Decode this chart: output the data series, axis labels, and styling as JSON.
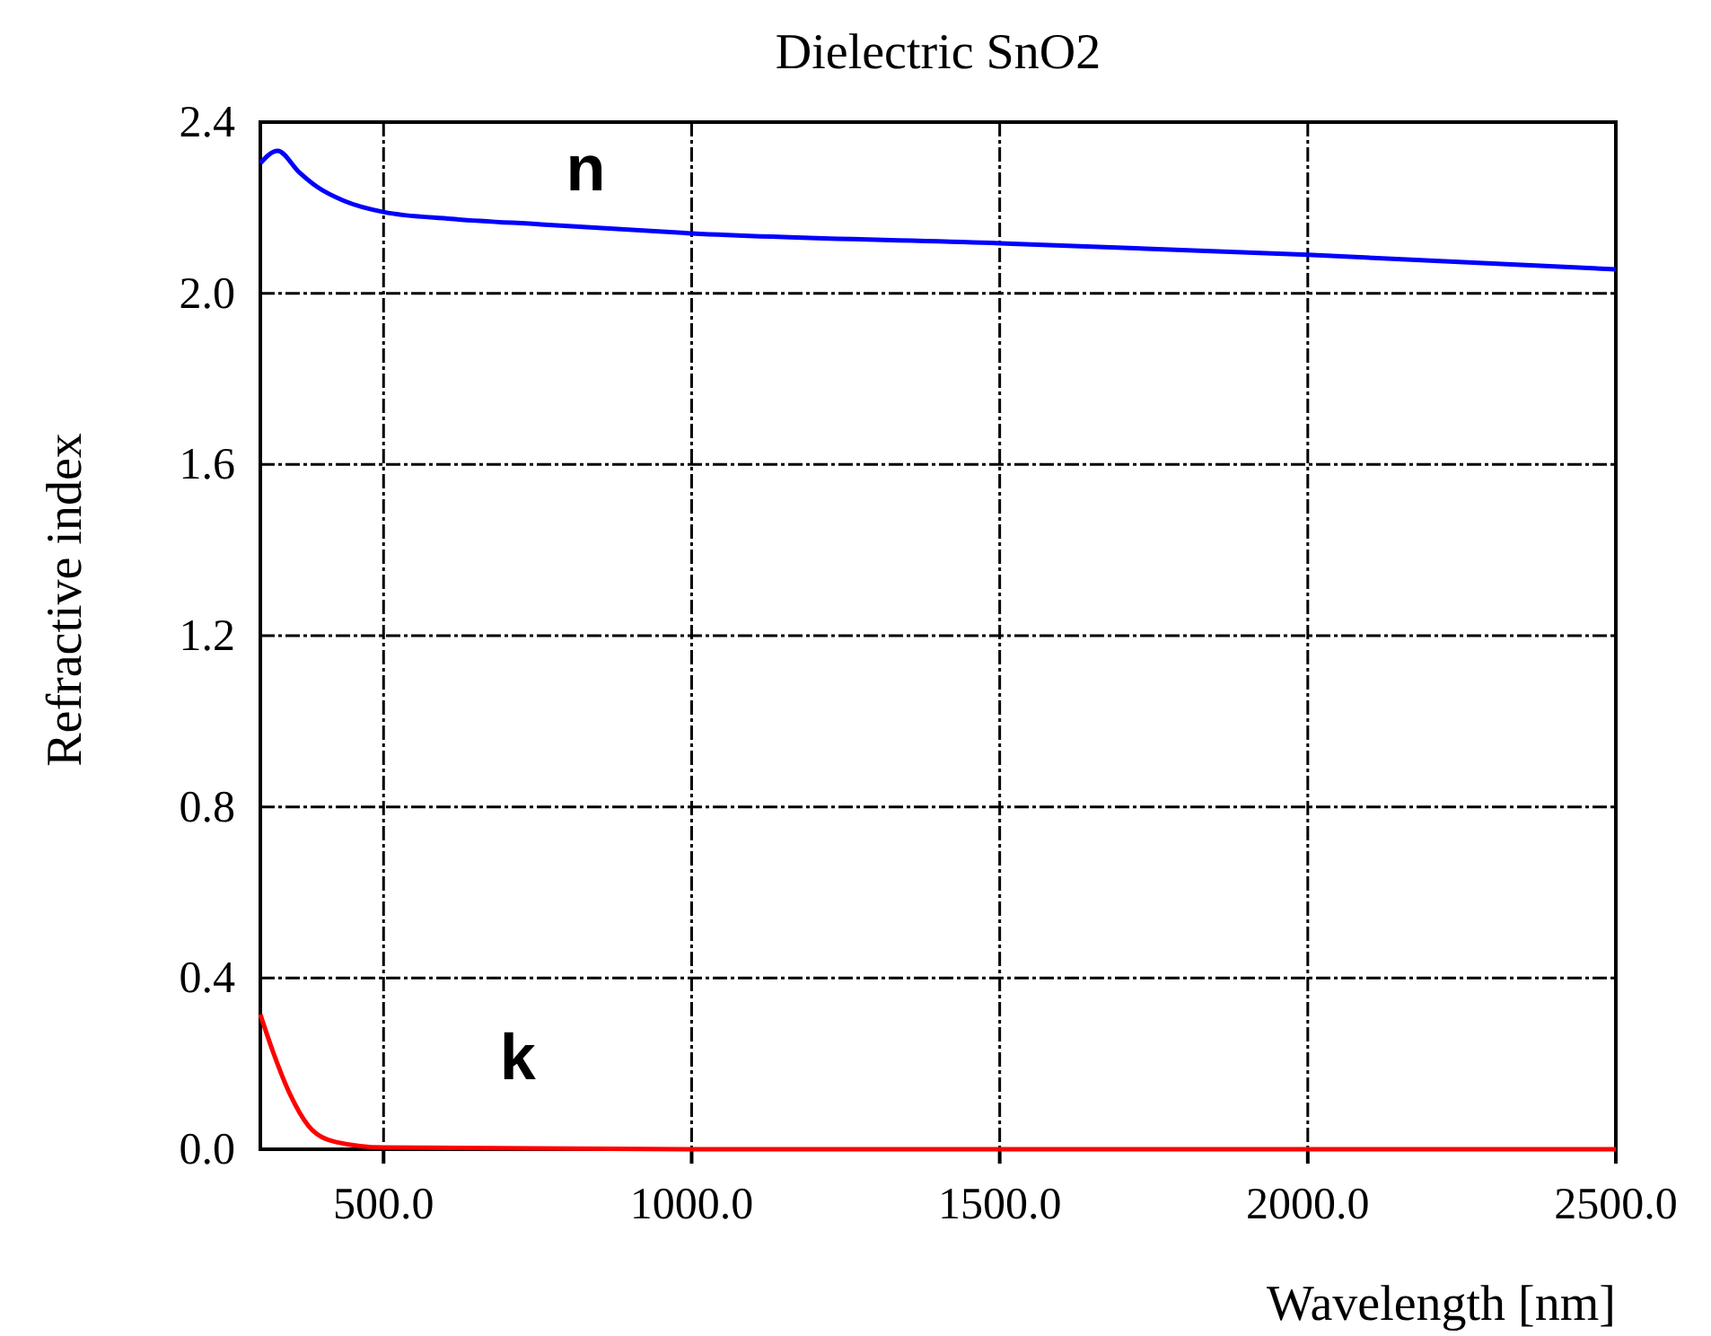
{
  "chart_data": {
    "type": "line",
    "title": "Dielectric SnO2",
    "xlabel": "Wavelength [nm]",
    "ylabel": "Refractive index",
    "xlim": [
      300,
      2500
    ],
    "ylim": [
      0,
      2.4
    ],
    "xticks": [
      {
        "value": 500,
        "label": "500.0"
      },
      {
        "value": 1000,
        "label": "1000.0"
      },
      {
        "value": 1500,
        "label": "1500.0"
      },
      {
        "value": 2000,
        "label": "2000.0"
      },
      {
        "value": 2500,
        "label": "2500.0"
      }
    ],
    "yticks": [
      {
        "value": 0,
        "label": "0.0"
      },
      {
        "value": 0.4,
        "label": "0.4"
      },
      {
        "value": 0.8,
        "label": "0.8"
      },
      {
        "value": 1.2,
        "label": "1.2"
      },
      {
        "value": 1.6,
        "label": "1.6"
      },
      {
        "value": 2.0,
        "label": "2.0"
      },
      {
        "value": 2.4,
        "label": "2.4"
      }
    ],
    "grid": true,
    "line_style": "solid",
    "marker": "none",
    "series": [
      {
        "name": "n",
        "color": "#0000ff",
        "x": [
          300,
          328,
          363,
          392,
          436,
          500,
          610,
          756,
          1000,
          1500,
          2000,
          2500
        ],
        "values": [
          2.304,
          2.333,
          2.283,
          2.249,
          2.216,
          2.19,
          2.174,
          2.161,
          2.14,
          2.117,
          2.09,
          2.056
        ]
      },
      {
        "name": "k",
        "color": "#ff0000",
        "x": [
          300,
          320,
          349,
          378,
          422,
          500,
          1000,
          1500,
          2000,
          2500
        ],
        "values": [
          0.315,
          0.23,
          0.126,
          0.055,
          0.017,
          0.004,
          0,
          0,
          0,
          0
        ]
      }
    ]
  }
}
